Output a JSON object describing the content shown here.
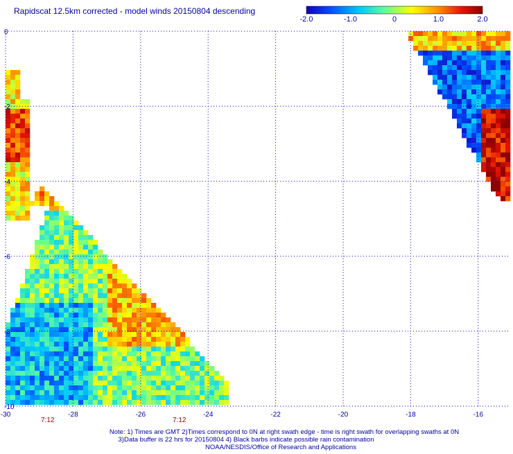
{
  "title": "Rapidscat 12.5km corrected - model winds 20150804 descending",
  "colorbar": {
    "labels": [
      "-2.0",
      "-1.0",
      "0",
      "1.0",
      "2.0"
    ],
    "range": [
      -2.0,
      2.0
    ],
    "colormap": [
      "#1400b4",
      "#0050ff",
      "#00c8ff",
      "#64ff96",
      "#ffff00",
      "#ff8c00",
      "#e61400",
      "#8c0000"
    ]
  },
  "map": {
    "lon_range": [
      -30,
      -15
    ],
    "lat_range": [
      -10,
      0
    ],
    "lon_ticks": [
      "-30",
      "-28",
      "-26",
      "-24",
      "-22",
      "-20",
      "-18",
      "-16"
    ],
    "lat_ticks": [
      "0",
      "-2",
      "-4",
      "-6",
      "-8",
      "-10"
    ],
    "grid": true,
    "grid_style": "dotted blue",
    "time_labels": [
      "7:12",
      "7:12"
    ]
  },
  "notes": [
    "Note: 1) Times are GMT 2)Times correspond to 0N at right swath edge - time is right swath for overlapping swaths at 0N",
    "3)Data buffer is 22 hrs for 20150804 4) Black barbs indicate possible rain contamination",
    "NOAA/NESDIS/Office of Research and Applications"
  ],
  "colors": {
    "grid": "#0000c0",
    "text": "#0000a0",
    "time_label": "#a00000"
  }
}
